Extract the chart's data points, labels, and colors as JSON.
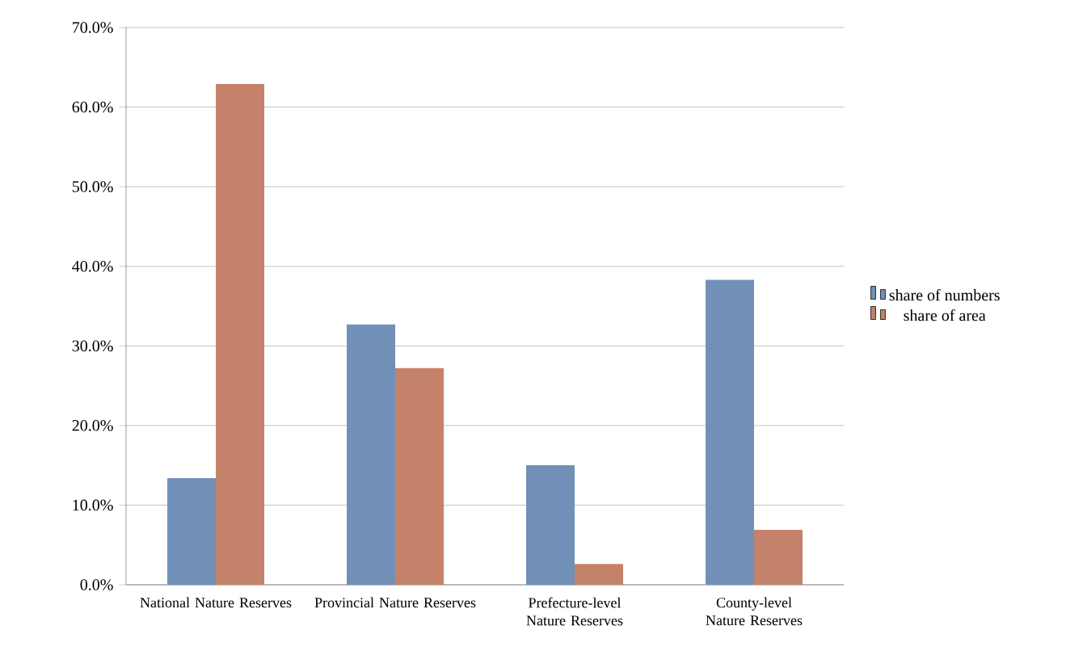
{
  "chart_data": {
    "type": "bar",
    "categories": [
      "National Nature Reserves",
      "Provincial Nature Reserves",
      "Prefecture-level Nature Reserves",
      "County-level Nature Reserves"
    ],
    "series": [
      {
        "name": "share of numbers",
        "color": "#7090b8",
        "values": [
          13.4,
          32.7,
          15.0,
          38.3
        ]
      },
      {
        "name": "share of area",
        "color": "#c5826a",
        "values": [
          62.9,
          27.2,
          2.6,
          6.9
        ]
      }
    ],
    "ylim": [
      0,
      70
    ],
    "yticks": [
      {
        "value": 0,
        "label": "0.0%"
      },
      {
        "value": 10,
        "label": "10.0%"
      },
      {
        "value": 20,
        "label": "20.0%"
      },
      {
        "value": 30,
        "label": "30.0%"
      },
      {
        "value": 40,
        "label": "40.0%"
      },
      {
        "value": 50,
        "label": "50.0%"
      },
      {
        "value": 60,
        "label": "60.0%"
      },
      {
        "value": 70,
        "label": "70.0%"
      }
    ],
    "grid": "y",
    "legend": "right"
  }
}
